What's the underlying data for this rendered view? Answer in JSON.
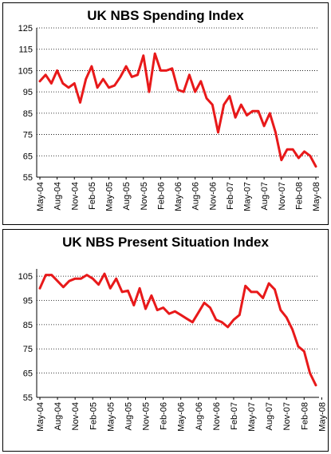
{
  "chart_data": [
    {
      "type": "line",
      "title": "UK NBS Spending Index",
      "xlabel": "",
      "ylabel": "",
      "ylim": [
        55,
        125
      ],
      "yticks": [
        125,
        115,
        105,
        95,
        85,
        75,
        65,
        55
      ],
      "x_tick_labels": [
        "May-04",
        "Aug-04",
        "Nov-04",
        "Feb-05",
        "May-05",
        "Aug-05",
        "Nov-05",
        "Feb-06",
        "May-06",
        "Aug-06",
        "Nov-06",
        "Feb-07",
        "May-07",
        "Aug-07",
        "Nov-07",
        "Feb-08",
        "May-08"
      ],
      "grid": true,
      "line_color": "#e8191a",
      "series": [
        {
          "values": [
            100,
            103,
            99,
            105,
            99,
            97,
            99,
            90,
            101,
            107,
            97,
            101,
            97,
            98,
            102,
            107,
            102,
            103,
            112,
            95,
            113,
            105,
            105,
            106,
            96,
            95,
            103,
            95,
            100,
            92,
            89,
            76,
            89,
            93,
            83,
            89,
            84,
            86,
            86,
            79,
            85,
            76,
            63,
            68,
            68,
            64,
            67,
            65,
            60
          ]
        }
      ]
    },
    {
      "type": "line",
      "title": "UK NBS Present Situation Index",
      "xlabel": "",
      "ylabel": "",
      "ylim": [
        55,
        108
      ],
      "yticks": [
        105,
        95,
        85,
        75,
        65,
        55
      ],
      "x_tick_labels": [
        "May-04",
        "Aug-04",
        "Nov-04",
        "Feb-05",
        "May-05",
        "Aug-05",
        "Nov-05",
        "Feb-06",
        "May-06",
        "Aug-06",
        "Nov-06",
        "Feb-07",
        "May-07",
        "Aug-07",
        "Nov-07",
        "Feb-08",
        "May-08"
      ],
      "grid": true,
      "line_color": "#e8191a",
      "series": [
        {
          "values": [
            100,
            105.5,
            105.5,
            103,
            100.5,
            103,
            104,
            104,
            105.5,
            104,
            101.5,
            106,
            100,
            104,
            98.5,
            99,
            93,
            100,
            91.5,
            97,
            91,
            92,
            89.5,
            90.5,
            89,
            87.5,
            86,
            90,
            94,
            92,
            87,
            86,
            84,
            87,
            89,
            101,
            98.5,
            98.5,
            96,
            102,
            99.5,
            91,
            88,
            83,
            76,
            74,
            65,
            60
          ]
        }
      ]
    }
  ]
}
